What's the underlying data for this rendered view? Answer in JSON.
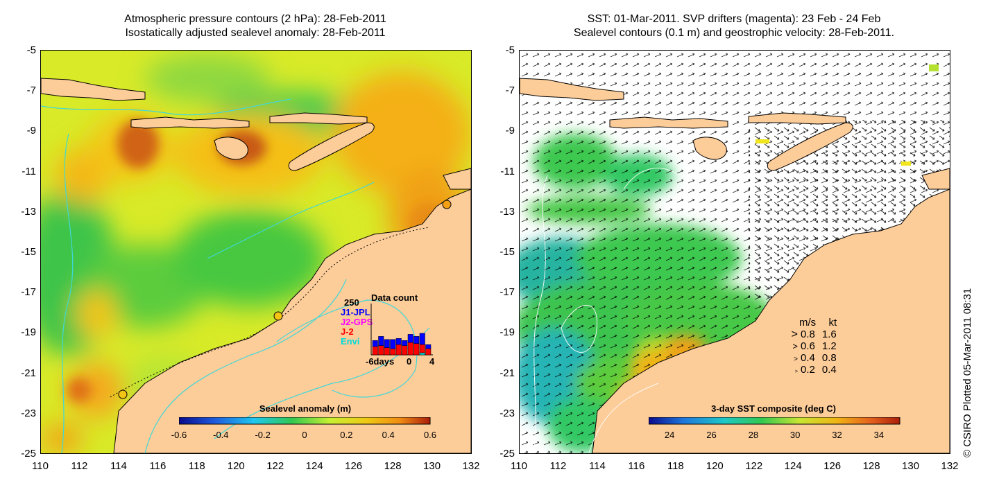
{
  "left_panel": {
    "title_line1": "Atmospheric pressure contours (2 hPa): 28-Feb-2011",
    "title_line2": "Isostatically adjusted sealevel anomaly: 28-Feb-2011",
    "colorbar": {
      "title": "Sealevel anomaly (m)",
      "ticks": [
        "-0.6",
        "-0.4",
        "-0.2",
        "0",
        "0.2",
        "0.4",
        "0.6"
      ],
      "range": [
        -0.6,
        0.6
      ],
      "colors": [
        "#0a0a8c",
        "#1e5adc",
        "#1ec8f0",
        "#32c850",
        "#c8f032",
        "#f0c814",
        "#f08c14",
        "#aa1e0a"
      ]
    },
    "inset": {
      "title": "Data count",
      "ymax_label": "250",
      "series": [
        {
          "name": "J1-JPL",
          "color": "#0000ff"
        },
        {
          "name": "J2-GPS",
          "color": "#ff00ff"
        },
        {
          "name": "J-2",
          "color": "#ff0000"
        },
        {
          "name": "Envi",
          "color": "#00dcdc"
        }
      ],
      "x_tick_labels": [
        "-6days",
        "0",
        "4"
      ],
      "red_counts": [
        40,
        45,
        35,
        30,
        50,
        45,
        60,
        55,
        40,
        30
      ],
      "blue_counts": [
        30,
        45,
        40,
        45,
        30,
        25,
        40,
        35,
        55,
        20
      ],
      "cyan_counts": [
        0,
        0,
        0,
        0,
        0,
        0,
        0,
        0,
        10,
        0
      ]
    }
  },
  "right_panel": {
    "title_line1": "SST: 01-Mar-2011. SVP drifters (magenta): 23 Feb - 24 Feb",
    "title_line2": "Sealevel contours (0.1 m) and geostrophic velocity: 28-Feb-2011.",
    "colorbar": {
      "title": "3-day SST composite (deg C)",
      "ticks": [
        "24",
        "26",
        "28",
        "30",
        "32",
        "34"
      ],
      "range": [
        23,
        35
      ],
      "colors": [
        "#0a0a8c",
        "#1e78dc",
        "#1ec8c8",
        "#32c850",
        "#c8e632",
        "#f0b414",
        "#e6641e",
        "#aa1e0a"
      ]
    },
    "speed_legend": {
      "header_ms": "m/s",
      "header_kt": "kt",
      "rows": [
        {
          "ms": "0.8",
          "kt": "1.6"
        },
        {
          "ms": "0.6",
          "kt": "1.2"
        },
        {
          "ms": "0.4",
          "kt": "0.8"
        },
        {
          "ms": "0.2",
          "kt": "0.4"
        }
      ]
    }
  },
  "axes": {
    "lat_ticks": [
      "-5",
      "-7",
      "-9",
      "-11",
      "-13",
      "-15",
      "-17",
      "-19",
      "-21",
      "-23",
      "-25"
    ],
    "lon_ticks": [
      "110",
      "112",
      "114",
      "116",
      "118",
      "120",
      "122",
      "124",
      "126",
      "128",
      "130",
      "132"
    ],
    "lat_range": [
      -25,
      -5
    ],
    "lon_range": [
      110,
      132
    ]
  },
  "credit": "© CSIRO Plotted 05-Mar-2011 08:31",
  "colors": {
    "land": "#fccc99",
    "contour": "#40d8d8",
    "sst_white": "#ffffff"
  }
}
